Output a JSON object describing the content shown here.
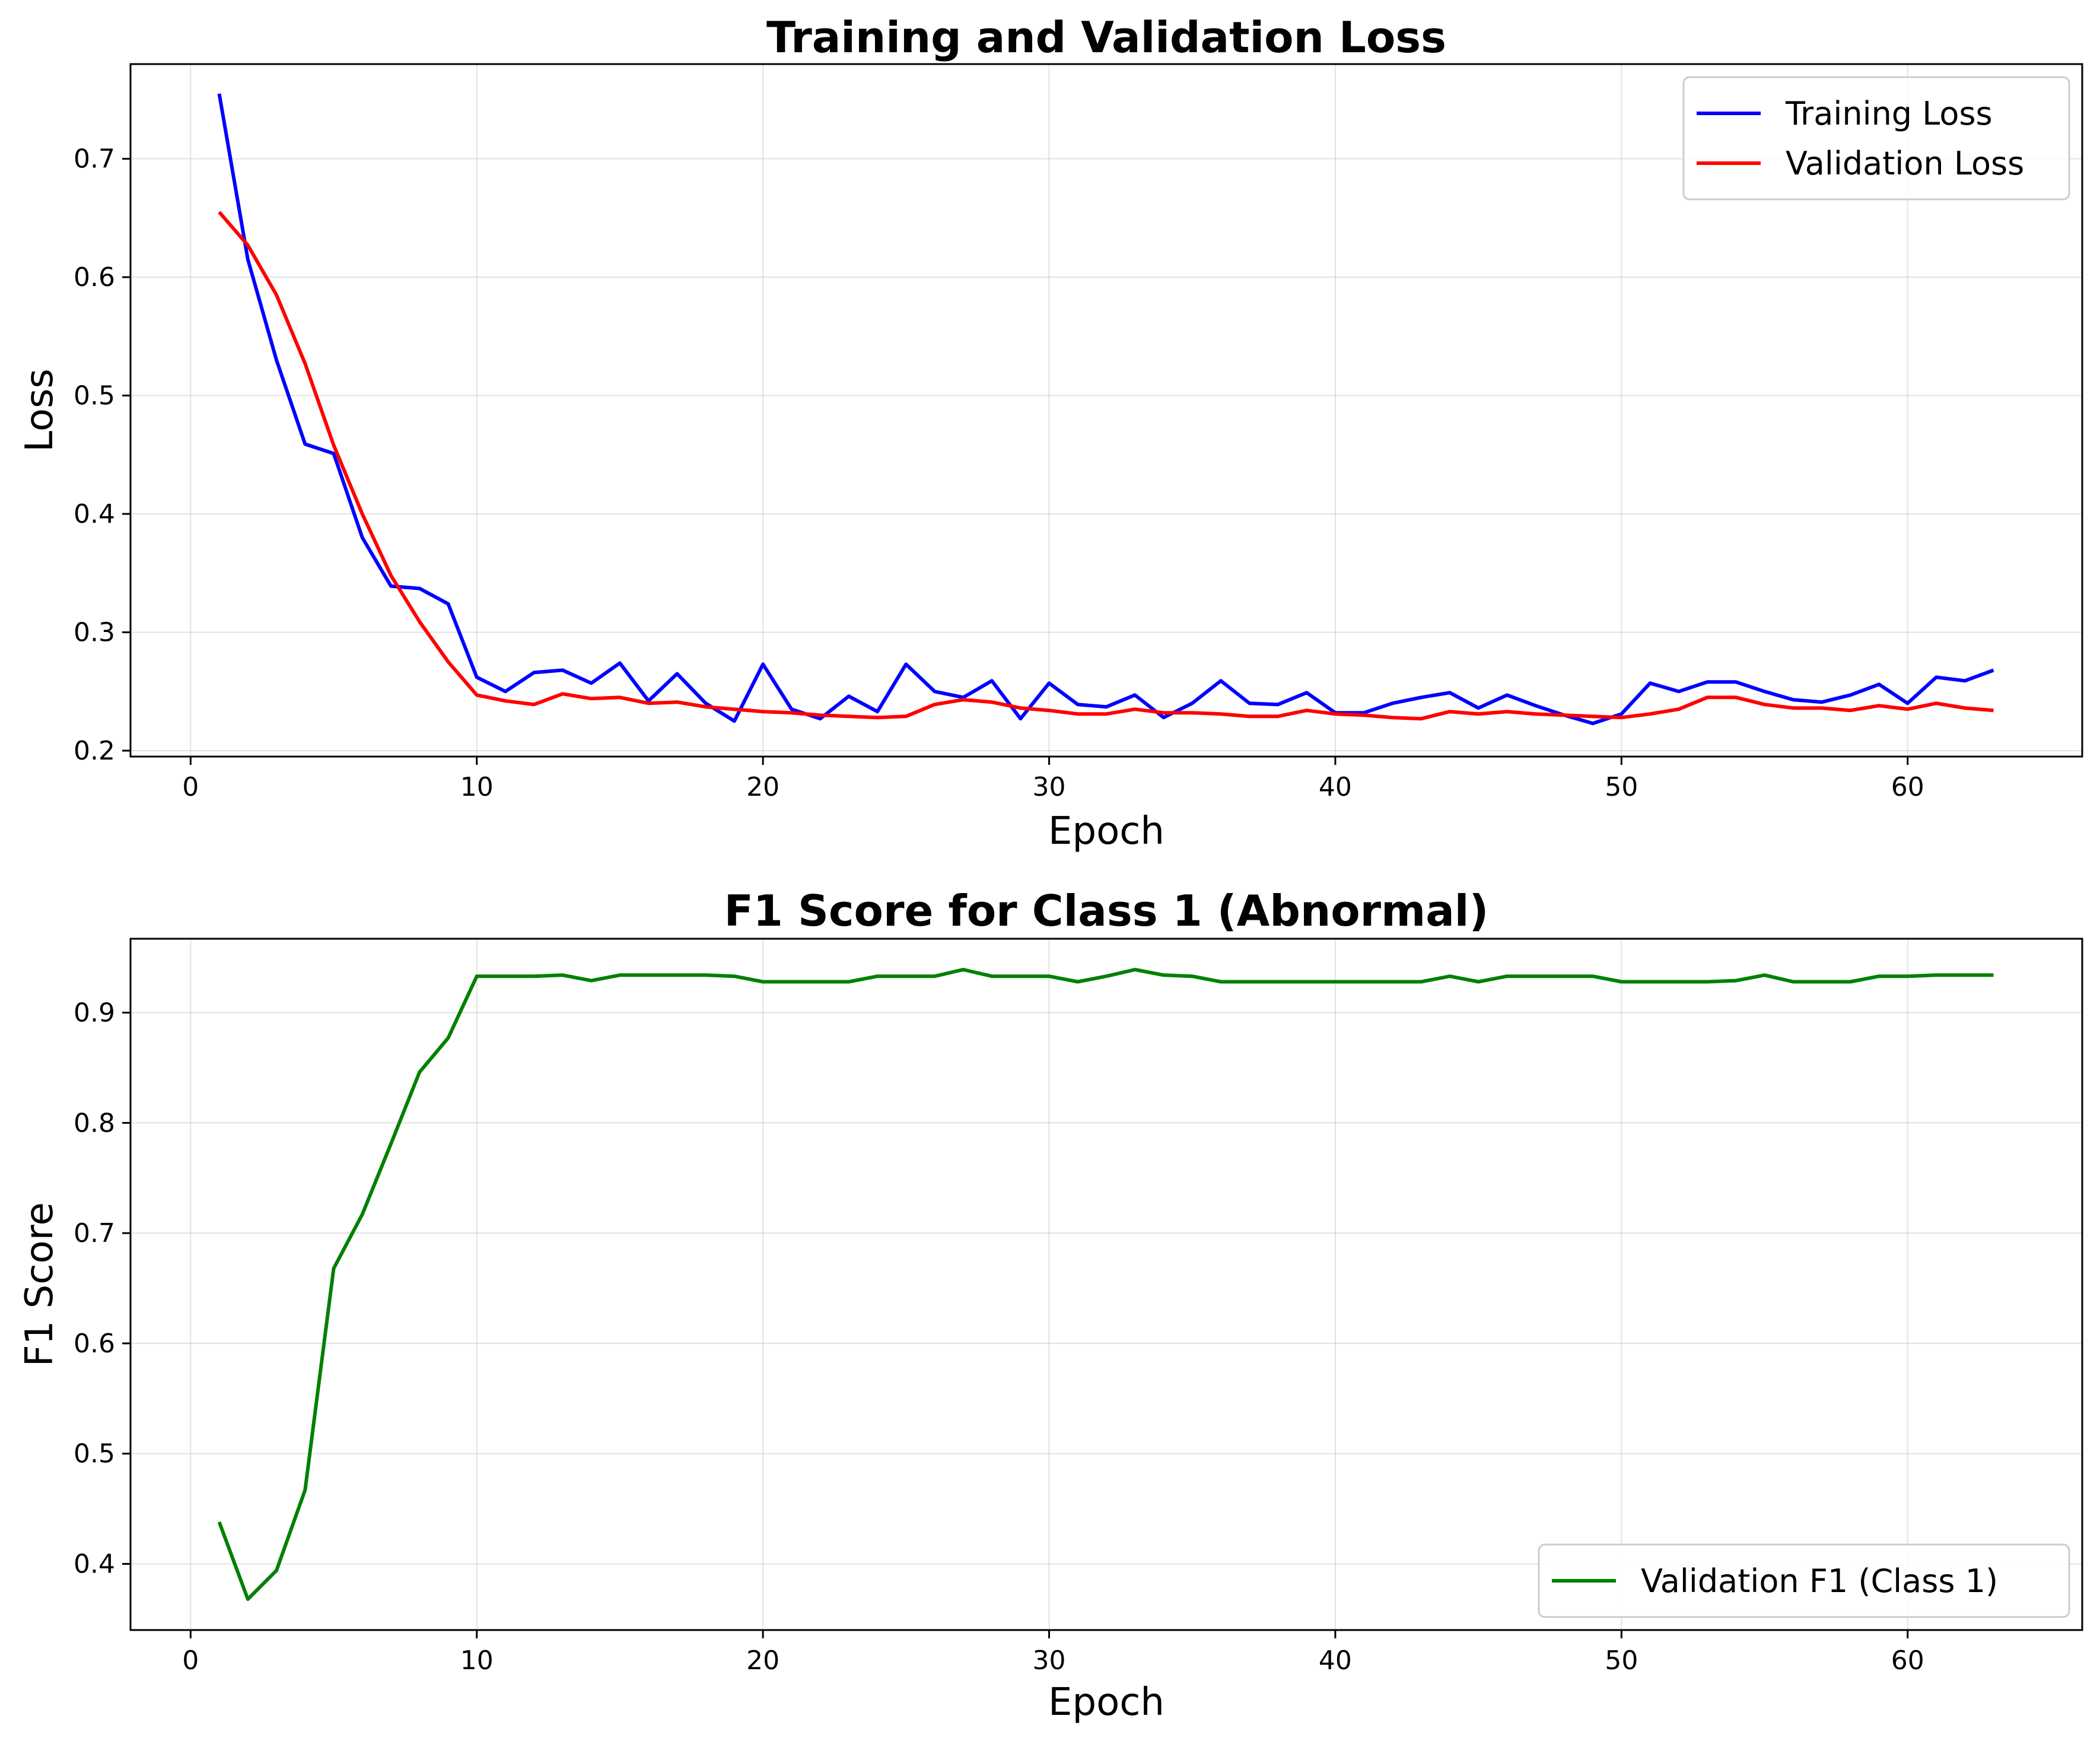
{
  "chart_data": [
    {
      "type": "line",
      "title": "Training and Validation Loss",
      "xlabel": "Epoch",
      "ylabel": "Loss",
      "xlim": [
        -2.1,
        66.1
      ],
      "ylim": [
        0.195,
        0.78
      ],
      "xticks": [
        0,
        10,
        20,
        30,
        40,
        50,
        60
      ],
      "yticks": [
        0.2,
        0.3,
        0.4,
        0.5,
        0.6,
        0.7
      ],
      "x": [
        1,
        2,
        3,
        4,
        5,
        6,
        7,
        8,
        9,
        10,
        11,
        12,
        13,
        14,
        15,
        16,
        17,
        18,
        19,
        20,
        21,
        22,
        23,
        24,
        25,
        26,
        27,
        28,
        29,
        30,
        31,
        32,
        33,
        34,
        35,
        36,
        37,
        38,
        39,
        40,
        41,
        42,
        43,
        44,
        45,
        46,
        47,
        48,
        49,
        50,
        51,
        52,
        53,
        54,
        55,
        56,
        57,
        58,
        59,
        60,
        61,
        62,
        63
      ],
      "grid": true,
      "legend_position": "upper right",
      "series": [
        {
          "name": "Training Loss",
          "color": "#0000ff",
          "values": [
            0.755,
            0.615,
            0.53,
            0.459,
            0.451,
            0.38,
            0.339,
            0.337,
            0.324,
            0.262,
            0.25,
            0.266,
            0.268,
            0.257,
            0.274,
            0.242,
            0.265,
            0.24,
            0.225,
            0.273,
            0.235,
            0.227,
            0.246,
            0.233,
            0.273,
            0.25,
            0.245,
            0.259,
            0.227,
            0.257,
            0.239,
            0.237,
            0.247,
            0.228,
            0.24,
            0.259,
            0.24,
            0.239,
            0.249,
            0.232,
            0.232,
            0.24,
            0.245,
            0.249,
            0.236,
            0.247,
            0.238,
            0.23,
            0.223,
            0.231,
            0.257,
            0.25,
            0.258,
            0.258,
            0.25,
            0.243,
            0.241,
            0.247,
            0.256,
            0.24,
            0.262,
            0.259,
            0.268
          ]
        },
        {
          "name": "Validation Loss",
          "color": "#ff0000",
          "values": [
            0.655,
            0.627,
            0.585,
            0.527,
            0.458,
            0.4,
            0.348,
            0.309,
            0.275,
            0.247,
            0.242,
            0.239,
            0.248,
            0.244,
            0.245,
            0.24,
            0.241,
            0.237,
            0.235,
            0.233,
            0.232,
            0.23,
            0.229,
            0.228,
            0.229,
            0.239,
            0.243,
            0.241,
            0.236,
            0.234,
            0.231,
            0.231,
            0.235,
            0.232,
            0.232,
            0.231,
            0.229,
            0.229,
            0.234,
            0.231,
            0.23,
            0.228,
            0.227,
            0.233,
            0.231,
            0.233,
            0.231,
            0.23,
            0.229,
            0.228,
            0.231,
            0.235,
            0.245,
            0.245,
            0.239,
            0.236,
            0.236,
            0.234,
            0.238,
            0.235,
            0.24,
            0.236,
            0.234
          ]
        }
      ]
    },
    {
      "type": "line",
      "title": "F1 Score for Class 1 (Abnormal)",
      "xlabel": "Epoch",
      "ylabel": "F1 Score",
      "xlim": [
        -2.1,
        66.1
      ],
      "ylim": [
        0.34,
        0.967
      ],
      "xticks": [
        0,
        10,
        20,
        30,
        40,
        50,
        60
      ],
      "yticks": [
        0.4,
        0.5,
        0.6,
        0.7,
        0.8,
        0.9
      ],
      "x": [
        1,
        2,
        3,
        4,
        5,
        6,
        7,
        8,
        9,
        10,
        11,
        12,
        13,
        14,
        15,
        16,
        17,
        18,
        19,
        20,
        21,
        22,
        23,
        24,
        25,
        26,
        27,
        28,
        29,
        30,
        31,
        32,
        33,
        34,
        35,
        36,
        37,
        38,
        39,
        40,
        41,
        42,
        43,
        44,
        45,
        46,
        47,
        48,
        49,
        50,
        51,
        52,
        53,
        54,
        55,
        56,
        57,
        58,
        59,
        60,
        61,
        62,
        63
      ],
      "grid": true,
      "legend_position": "lower right",
      "series": [
        {
          "name": "Validation F1 (Class 1)",
          "color": "#008000",
          "values": [
            0.438,
            0.368,
            0.394,
            0.467,
            0.668,
            0.717,
            0.781,
            0.846,
            0.877,
            0.933,
            0.933,
            0.933,
            0.934,
            0.929,
            0.934,
            0.934,
            0.934,
            0.934,
            0.933,
            0.928,
            0.928,
            0.928,
            0.928,
            0.933,
            0.933,
            0.933,
            0.939,
            0.933,
            0.933,
            0.933,
            0.928,
            0.933,
            0.939,
            0.934,
            0.933,
            0.928,
            0.928,
            0.928,
            0.928,
            0.928,
            0.928,
            0.928,
            0.928,
            0.933,
            0.928,
            0.933,
            0.933,
            0.933,
            0.933,
            0.928,
            0.928,
            0.928,
            0.928,
            0.929,
            0.934,
            0.928,
            0.928,
            0.928,
            0.933,
            0.933,
            0.934,
            0.934,
            0.934
          ]
        }
      ]
    }
  ]
}
